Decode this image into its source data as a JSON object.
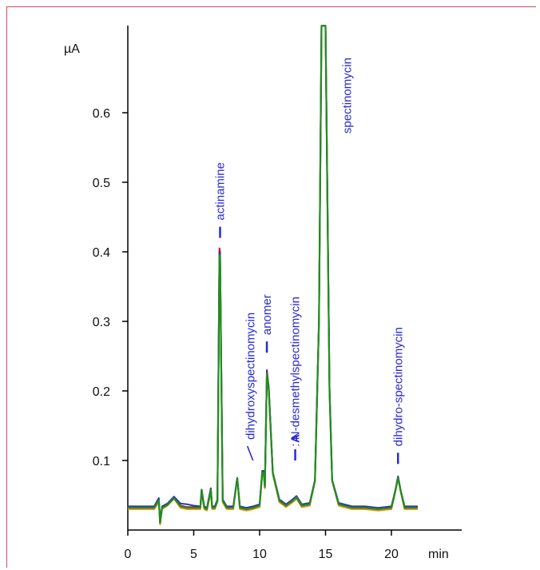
{
  "chart_data": {
    "type": "line",
    "title": "",
    "xlabel": "min",
    "ylabel": "µA",
    "xlim": [
      0,
      25
    ],
    "ylim": [
      0,
      0.725
    ],
    "x_ticks": [
      0,
      5,
      10,
      15,
      20
    ],
    "y_ticks": [
      0.1,
      0.2,
      0.3,
      0.4,
      0.5,
      0.6
    ],
    "x_tick_labels": [
      "0",
      "5",
      "10",
      "15",
      "20"
    ],
    "y_tick_labels": [
      "0.1",
      "0.2",
      "0.3",
      "0.4",
      "0.5",
      "0.6"
    ],
    "grid": false,
    "legend": "none",
    "series": [
      {
        "color": "#f08a00",
        "x": [
          0.0,
          2.0,
          2.35,
          2.45,
          2.6,
          3.0,
          3.5,
          4.0,
          4.5,
          5.0,
          5.5,
          5.6,
          5.8,
          6.0,
          6.3,
          6.4,
          6.6,
          6.8,
          6.95,
          7.0,
          7.05,
          7.2,
          7.5,
          8.0,
          8.3,
          8.5,
          9.0,
          9.5,
          10.0,
          10.2,
          10.3,
          10.4,
          10.55,
          10.7,
          11.0,
          11.5,
          12.0,
          12.5,
          12.8,
          13.2,
          13.8,
          14.2,
          14.5,
          14.7,
          15.0,
          15.3,
          15.5,
          16.0,
          17.0,
          18.0,
          19.0,
          20.0,
          20.3,
          20.5,
          20.7,
          21.0,
          22.0
        ],
        "y": [
          0.03,
          0.03,
          0.04,
          0.008,
          0.03,
          0.035,
          0.045,
          0.032,
          0.03,
          0.03,
          0.03,
          0.055,
          0.03,
          0.028,
          0.055,
          0.03,
          0.03,
          0.04,
          0.39,
          0.385,
          0.3,
          0.04,
          0.03,
          0.03,
          0.075,
          0.03,
          0.028,
          0.03,
          0.033,
          0.08,
          0.08,
          0.06,
          0.225,
          0.2,
          0.08,
          0.04,
          0.033,
          0.04,
          0.045,
          0.033,
          0.035,
          0.07,
          0.3,
          0.725,
          0.725,
          0.2,
          0.07,
          0.035,
          0.03,
          0.03,
          0.028,
          0.03,
          0.055,
          0.075,
          0.055,
          0.03,
          0.03
        ]
      },
      {
        "color": "#d01010",
        "x": [
          0.0,
          2.0,
          2.35,
          2.45,
          2.6,
          3.0,
          3.5,
          4.0,
          4.5,
          5.0,
          5.5,
          5.6,
          5.8,
          6.0,
          6.3,
          6.4,
          6.6,
          6.8,
          6.95,
          7.0,
          7.05,
          7.2,
          7.5,
          8.0,
          8.3,
          8.5,
          9.0,
          9.5,
          10.0,
          10.2,
          10.3,
          10.4,
          10.55,
          10.7,
          11.0,
          11.5,
          12.0,
          12.5,
          12.8,
          13.2,
          13.8,
          14.2,
          14.5,
          14.7,
          15.0,
          15.3,
          15.5,
          16.0,
          17.0,
          18.0,
          19.0,
          20.0,
          20.3,
          20.5,
          20.7,
          21.0,
          22.0
        ],
        "y": [
          0.033,
          0.033,
          0.045,
          0.012,
          0.033,
          0.037,
          0.047,
          0.035,
          0.033,
          0.033,
          0.033,
          0.058,
          0.033,
          0.031,
          0.06,
          0.033,
          0.033,
          0.043,
          0.405,
          0.4,
          0.31,
          0.043,
          0.033,
          0.033,
          0.075,
          0.033,
          0.031,
          0.033,
          0.036,
          0.085,
          0.085,
          0.063,
          0.23,
          0.205,
          0.083,
          0.043,
          0.036,
          0.043,
          0.048,
          0.036,
          0.038,
          0.072,
          0.3,
          0.725,
          0.725,
          0.205,
          0.072,
          0.038,
          0.033,
          0.033,
          0.031,
          0.033,
          0.057,
          0.077,
          0.057,
          0.033,
          0.033
        ]
      },
      {
        "color": "#3030c0",
        "x": [
          0.0,
          2.0,
          2.35,
          2.45,
          2.6,
          3.0,
          3.5,
          4.0,
          4.5,
          5.0,
          5.5,
          5.6,
          5.8,
          6.0,
          6.3,
          6.4,
          6.6,
          6.8,
          6.95,
          7.0,
          7.05,
          7.2,
          7.5,
          8.0,
          8.3,
          8.5,
          9.0,
          9.5,
          10.0,
          10.2,
          10.3,
          10.4,
          10.55,
          10.7,
          11.0,
          11.5,
          12.0,
          12.5,
          12.8,
          13.2,
          13.8,
          14.2,
          14.5,
          14.7,
          15.0,
          15.3,
          15.5,
          16.0,
          17.0,
          18.0,
          19.0,
          20.0,
          20.3,
          20.5,
          20.7,
          21.0,
          22.0
        ],
        "y": [
          0.034,
          0.034,
          0.046,
          0.012,
          0.034,
          0.038,
          0.048,
          0.038,
          0.037,
          0.035,
          0.034,
          0.058,
          0.034,
          0.032,
          0.06,
          0.034,
          0.034,
          0.044,
          0.4,
          0.395,
          0.305,
          0.044,
          0.034,
          0.034,
          0.075,
          0.034,
          0.032,
          0.034,
          0.037,
          0.085,
          0.085,
          0.063,
          0.228,
          0.203,
          0.083,
          0.044,
          0.037,
          0.044,
          0.049,
          0.037,
          0.039,
          0.072,
          0.3,
          0.725,
          0.725,
          0.205,
          0.072,
          0.039,
          0.034,
          0.034,
          0.032,
          0.034,
          0.057,
          0.077,
          0.057,
          0.034,
          0.034
        ]
      },
      {
        "color": "#1f8f1f",
        "x": [
          0.0,
          2.0,
          2.35,
          2.45,
          2.6,
          3.0,
          3.5,
          4.0,
          4.5,
          5.0,
          5.5,
          5.6,
          5.8,
          6.0,
          6.3,
          6.4,
          6.6,
          6.8,
          6.95,
          7.0,
          7.05,
          7.2,
          7.5,
          8.0,
          8.3,
          8.5,
          9.0,
          9.5,
          10.0,
          10.2,
          10.3,
          10.4,
          10.55,
          10.7,
          11.0,
          11.5,
          12.0,
          12.5,
          12.8,
          13.2,
          13.8,
          14.2,
          14.5,
          14.7,
          15.0,
          15.3,
          15.5,
          16.0,
          17.0,
          18.0,
          19.0,
          20.0,
          20.3,
          20.5,
          20.7,
          21.0,
          22.0
        ],
        "y": [
          0.032,
          0.032,
          0.043,
          0.01,
          0.032,
          0.036,
          0.046,
          0.034,
          0.032,
          0.032,
          0.032,
          0.057,
          0.032,
          0.03,
          0.058,
          0.032,
          0.032,
          0.042,
          0.395,
          0.39,
          0.305,
          0.042,
          0.032,
          0.032,
          0.075,
          0.032,
          0.03,
          0.032,
          0.035,
          0.083,
          0.083,
          0.062,
          0.225,
          0.2,
          0.082,
          0.042,
          0.035,
          0.042,
          0.047,
          0.035,
          0.037,
          0.071,
          0.3,
          0.725,
          0.725,
          0.2,
          0.071,
          0.037,
          0.032,
          0.032,
          0.03,
          0.032,
          0.056,
          0.075,
          0.056,
          0.032,
          0.032
        ]
      }
    ],
    "annotations": [
      {
        "text": "actinamine",
        "x": 7.0,
        "y": 0.42
      },
      {
        "text": "dihydroxyspectinomycin",
        "x": 9.8,
        "y": 0.1
      },
      {
        "text": "anomer",
        "x": 10.55,
        "y": 0.255
      },
      {
        "text": "A",
        "x": 12.7,
        "y": 0.1
      },
      {
        "text": ": N-desmethylspectinomycin",
        "x": 12.7,
        "y": 0.12
      },
      {
        "text": "spectinomycin",
        "x": 15.8,
        "y": 0.57
      },
      {
        "text": "dihydro-spectinomycin",
        "x": 20.5,
        "y": 0.095
      }
    ]
  }
}
